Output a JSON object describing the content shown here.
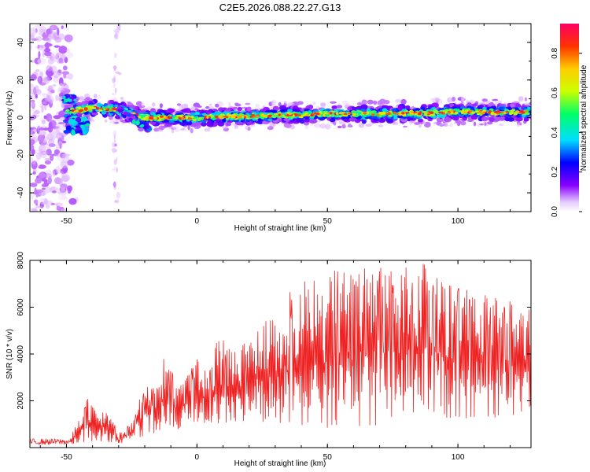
{
  "figure_title": "C2E5.2026.088.22.27.G13",
  "colors": {
    "snr_line": "#ee2222",
    "frame": "#000000"
  },
  "chart_data": [
    {
      "type": "heatmap",
      "title": "C2E5.2026.088.22.27.G13",
      "xlabel": "Height of straight line (km)",
      "ylabel": "Frequency (Hz)",
      "xlim": [
        -64,
        128
      ],
      "ylim": [
        -50,
        50
      ],
      "xticks": [
        -50,
        0,
        50,
        100
      ],
      "xtick_labels": [
        "-50",
        "0",
        "50",
        "100"
      ],
      "yticks": [
        -40,
        -20,
        0,
        20,
        40
      ],
      "ytick_labels": [
        "-40",
        "-20",
        "0",
        "20",
        "40"
      ],
      "colorbar": {
        "label": "Normalized spectral amplitude",
        "range": [
          0,
          0.95
        ],
        "ticks": [
          0,
          0.2,
          0.4,
          0.6,
          0.8
        ],
        "tick_labels": [
          "0.0",
          "0.2",
          "0.4",
          "0.6",
          "0.8"
        ],
        "colormap": [
          "#ffffff",
          "#cc88ff",
          "#8800ff",
          "#0000ff",
          "#00ddff",
          "#00ff66",
          "#ccff00",
          "#ffcc00",
          "#ff3300",
          "#ff0066"
        ]
      },
      "ridge": {
        "description": "main spectral line near 0 Hz, rising slightly with height",
        "points": [
          [
            -50,
            3
          ],
          [
            -40,
            5
          ],
          [
            -30,
            4
          ],
          [
            -20,
            0
          ],
          [
            0,
            0
          ],
          [
            25,
            1
          ],
          [
            50,
            2
          ],
          [
            75,
            2
          ],
          [
            100,
            3
          ],
          [
            128,
            3
          ]
        ]
      }
    },
    {
      "type": "line",
      "xlabel": "Height of straight line (km)",
      "ylabel": "SNR (10 * v/v)",
      "xlim": [
        -64,
        128
      ],
      "ylim": [
        0,
        8000
      ],
      "xticks": [
        -50,
        0,
        50,
        100
      ],
      "xtick_labels": [
        "-50",
        "0",
        "50",
        "100"
      ],
      "yticks": [
        2000,
        4000,
        6000,
        8000
      ],
      "ytick_labels": [
        "2000",
        "4000",
        "6000",
        "8000"
      ],
      "envelope": [
        [
          -64,
          300
        ],
        [
          -50,
          350
        ],
        [
          -45,
          1200
        ],
        [
          -42,
          2300
        ],
        [
          -38,
          1300
        ],
        [
          -35,
          1900
        ],
        [
          -30,
          600
        ],
        [
          -25,
          1200
        ],
        [
          -20,
          2700
        ],
        [
          -15,
          2600
        ],
        [
          -12,
          4200
        ],
        [
          -8,
          2700
        ],
        [
          -4,
          3300
        ],
        [
          0,
          3900
        ],
        [
          5,
          3300
        ],
        [
          8,
          4800
        ],
        [
          12,
          4400
        ],
        [
          18,
          4600
        ],
        [
          25,
          5200
        ],
        [
          30,
          6000
        ],
        [
          38,
          6900
        ],
        [
          45,
          7300
        ],
        [
          52,
          7600
        ],
        [
          60,
          7700
        ],
        [
          70,
          7700
        ],
        [
          78,
          7600
        ],
        [
          85,
          8000
        ],
        [
          95,
          7300
        ],
        [
          105,
          6700
        ],
        [
          115,
          6400
        ],
        [
          122,
          6200
        ],
        [
          128,
          5900
        ]
      ],
      "floor": [
        [
          -64,
          0
        ],
        [
          -50,
          0
        ],
        [
          -40,
          200
        ],
        [
          -30,
          100
        ],
        [
          -20,
          400
        ],
        [
          -10,
          600
        ],
        [
          0,
          900
        ],
        [
          10,
          800
        ],
        [
          20,
          900
        ],
        [
          30,
          700
        ],
        [
          40,
          600
        ],
        [
          50,
          400
        ],
        [
          70,
          600
        ],
        [
          90,
          900
        ],
        [
          110,
          900
        ],
        [
          128,
          1300
        ]
      ]
    }
  ]
}
